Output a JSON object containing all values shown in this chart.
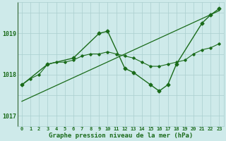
{
  "xlabel": "Graphe pression niveau de la mer (hPa)",
  "xlim": [
    -0.5,
    23.5
  ],
  "ylim": [
    1016.75,
    1019.75
  ],
  "yticks": [
    1017,
    1018,
    1019
  ],
  "xticks": [
    0,
    1,
    2,
    3,
    4,
    5,
    6,
    7,
    8,
    9,
    10,
    11,
    12,
    13,
    14,
    15,
    16,
    17,
    18,
    19,
    20,
    21,
    22,
    23
  ],
  "bg_color": "#ceeaea",
  "grid_color": "#aacece",
  "line_color": "#1a6b1a",
  "trend_x": [
    0,
    23
  ],
  "trend_y": [
    1017.35,
    1019.55
  ],
  "hourly_x": [
    0,
    1,
    2,
    3,
    4,
    5,
    6,
    7,
    8,
    9,
    10,
    11,
    12,
    13,
    14,
    15,
    16,
    17,
    18,
    19,
    20,
    21,
    22,
    23
  ],
  "hourly_y": [
    1017.75,
    1017.9,
    1018.0,
    1018.25,
    1018.3,
    1018.3,
    1018.35,
    1018.45,
    1018.5,
    1018.5,
    1018.55,
    1018.5,
    1018.45,
    1018.4,
    1018.3,
    1018.2,
    1018.2,
    1018.25,
    1018.3,
    1018.35,
    1018.5,
    1018.6,
    1018.65,
    1018.75
  ],
  "synoptic_x": [
    0,
    3,
    6,
    9,
    10,
    12,
    13,
    15,
    16,
    17,
    18,
    21,
    22,
    23
  ],
  "synoptic_y": [
    1017.75,
    1018.25,
    1018.4,
    1019.0,
    1019.05,
    1018.15,
    1018.05,
    1017.75,
    1017.6,
    1017.75,
    1018.25,
    1019.25,
    1019.45,
    1019.6
  ]
}
